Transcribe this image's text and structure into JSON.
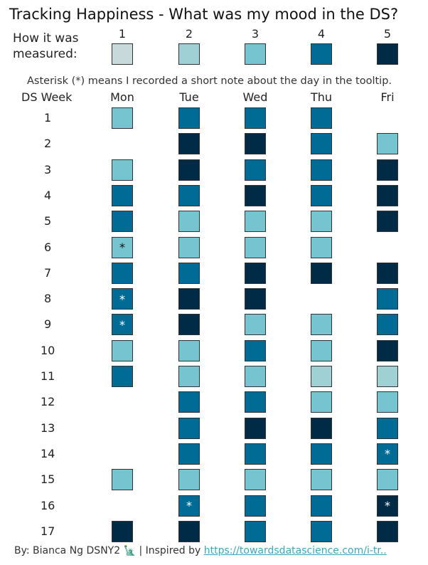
{
  "title": "Tracking Happiness - What was my mood in the DS?",
  "legend": {
    "label": "How it was measured:",
    "levels": [
      {
        "label": "1",
        "color": "#c8d9db"
      },
      {
        "label": "2",
        "color": "#9fd0d4"
      },
      {
        "label": "3",
        "color": "#75c4d0"
      },
      {
        "label": "4",
        "color": "#006c96"
      },
      {
        "label": "5",
        "color": "#002b47"
      }
    ]
  },
  "note": "Asterisk (*) means I recorded a short note about the day in the tooltip.",
  "footer": {
    "prefix": "By: Bianca Ng DSNY2 🗽 | Inspired by ",
    "link_text": "https://towardsdatascience.com/i-tr.."
  },
  "chart_data": {
    "type": "heatmap",
    "title": "Tracking Happiness - What was my mood in the DS?",
    "row_header": "DS Week",
    "columns": [
      "Mon",
      "Tue",
      "Wed",
      "Thu",
      "Fri"
    ],
    "rows": [
      "1",
      "2",
      "3",
      "4",
      "5",
      "6",
      "7",
      "8",
      "9",
      "10",
      "11",
      "12",
      "13",
      "14",
      "15",
      "16",
      "17"
    ],
    "values": [
      [
        3,
        4,
        4,
        4,
        null
      ],
      [
        null,
        5,
        5,
        4,
        3
      ],
      [
        3,
        5,
        4,
        4,
        5
      ],
      [
        4,
        4,
        5,
        4,
        5
      ],
      [
        4,
        3,
        3,
        3,
        5
      ],
      [
        3,
        3,
        3,
        3,
        null
      ],
      [
        4,
        4,
        5,
        5,
        5
      ],
      [
        4,
        5,
        5,
        null,
        4
      ],
      [
        4,
        5,
        3,
        3,
        4
      ],
      [
        3,
        3,
        4,
        3,
        5
      ],
      [
        4,
        3,
        3,
        2,
        2
      ],
      [
        null,
        4,
        4,
        3,
        3
      ],
      [
        null,
        4,
        5,
        5,
        4
      ],
      [
        null,
        4,
        4,
        4,
        4
      ],
      [
        3,
        3,
        3,
        3,
        3
      ],
      [
        null,
        4,
        4,
        4,
        5
      ],
      [
        5,
        5,
        4,
        4,
        5
      ]
    ],
    "notes": [
      {
        "row": "6",
        "col": "Mon"
      },
      {
        "row": "8",
        "col": "Mon"
      },
      {
        "row": "9",
        "col": "Mon"
      },
      {
        "row": "14",
        "col": "Fri"
      },
      {
        "row": "16",
        "col": "Tue"
      },
      {
        "row": "16",
        "col": "Fri"
      }
    ],
    "note_marker": "*"
  }
}
